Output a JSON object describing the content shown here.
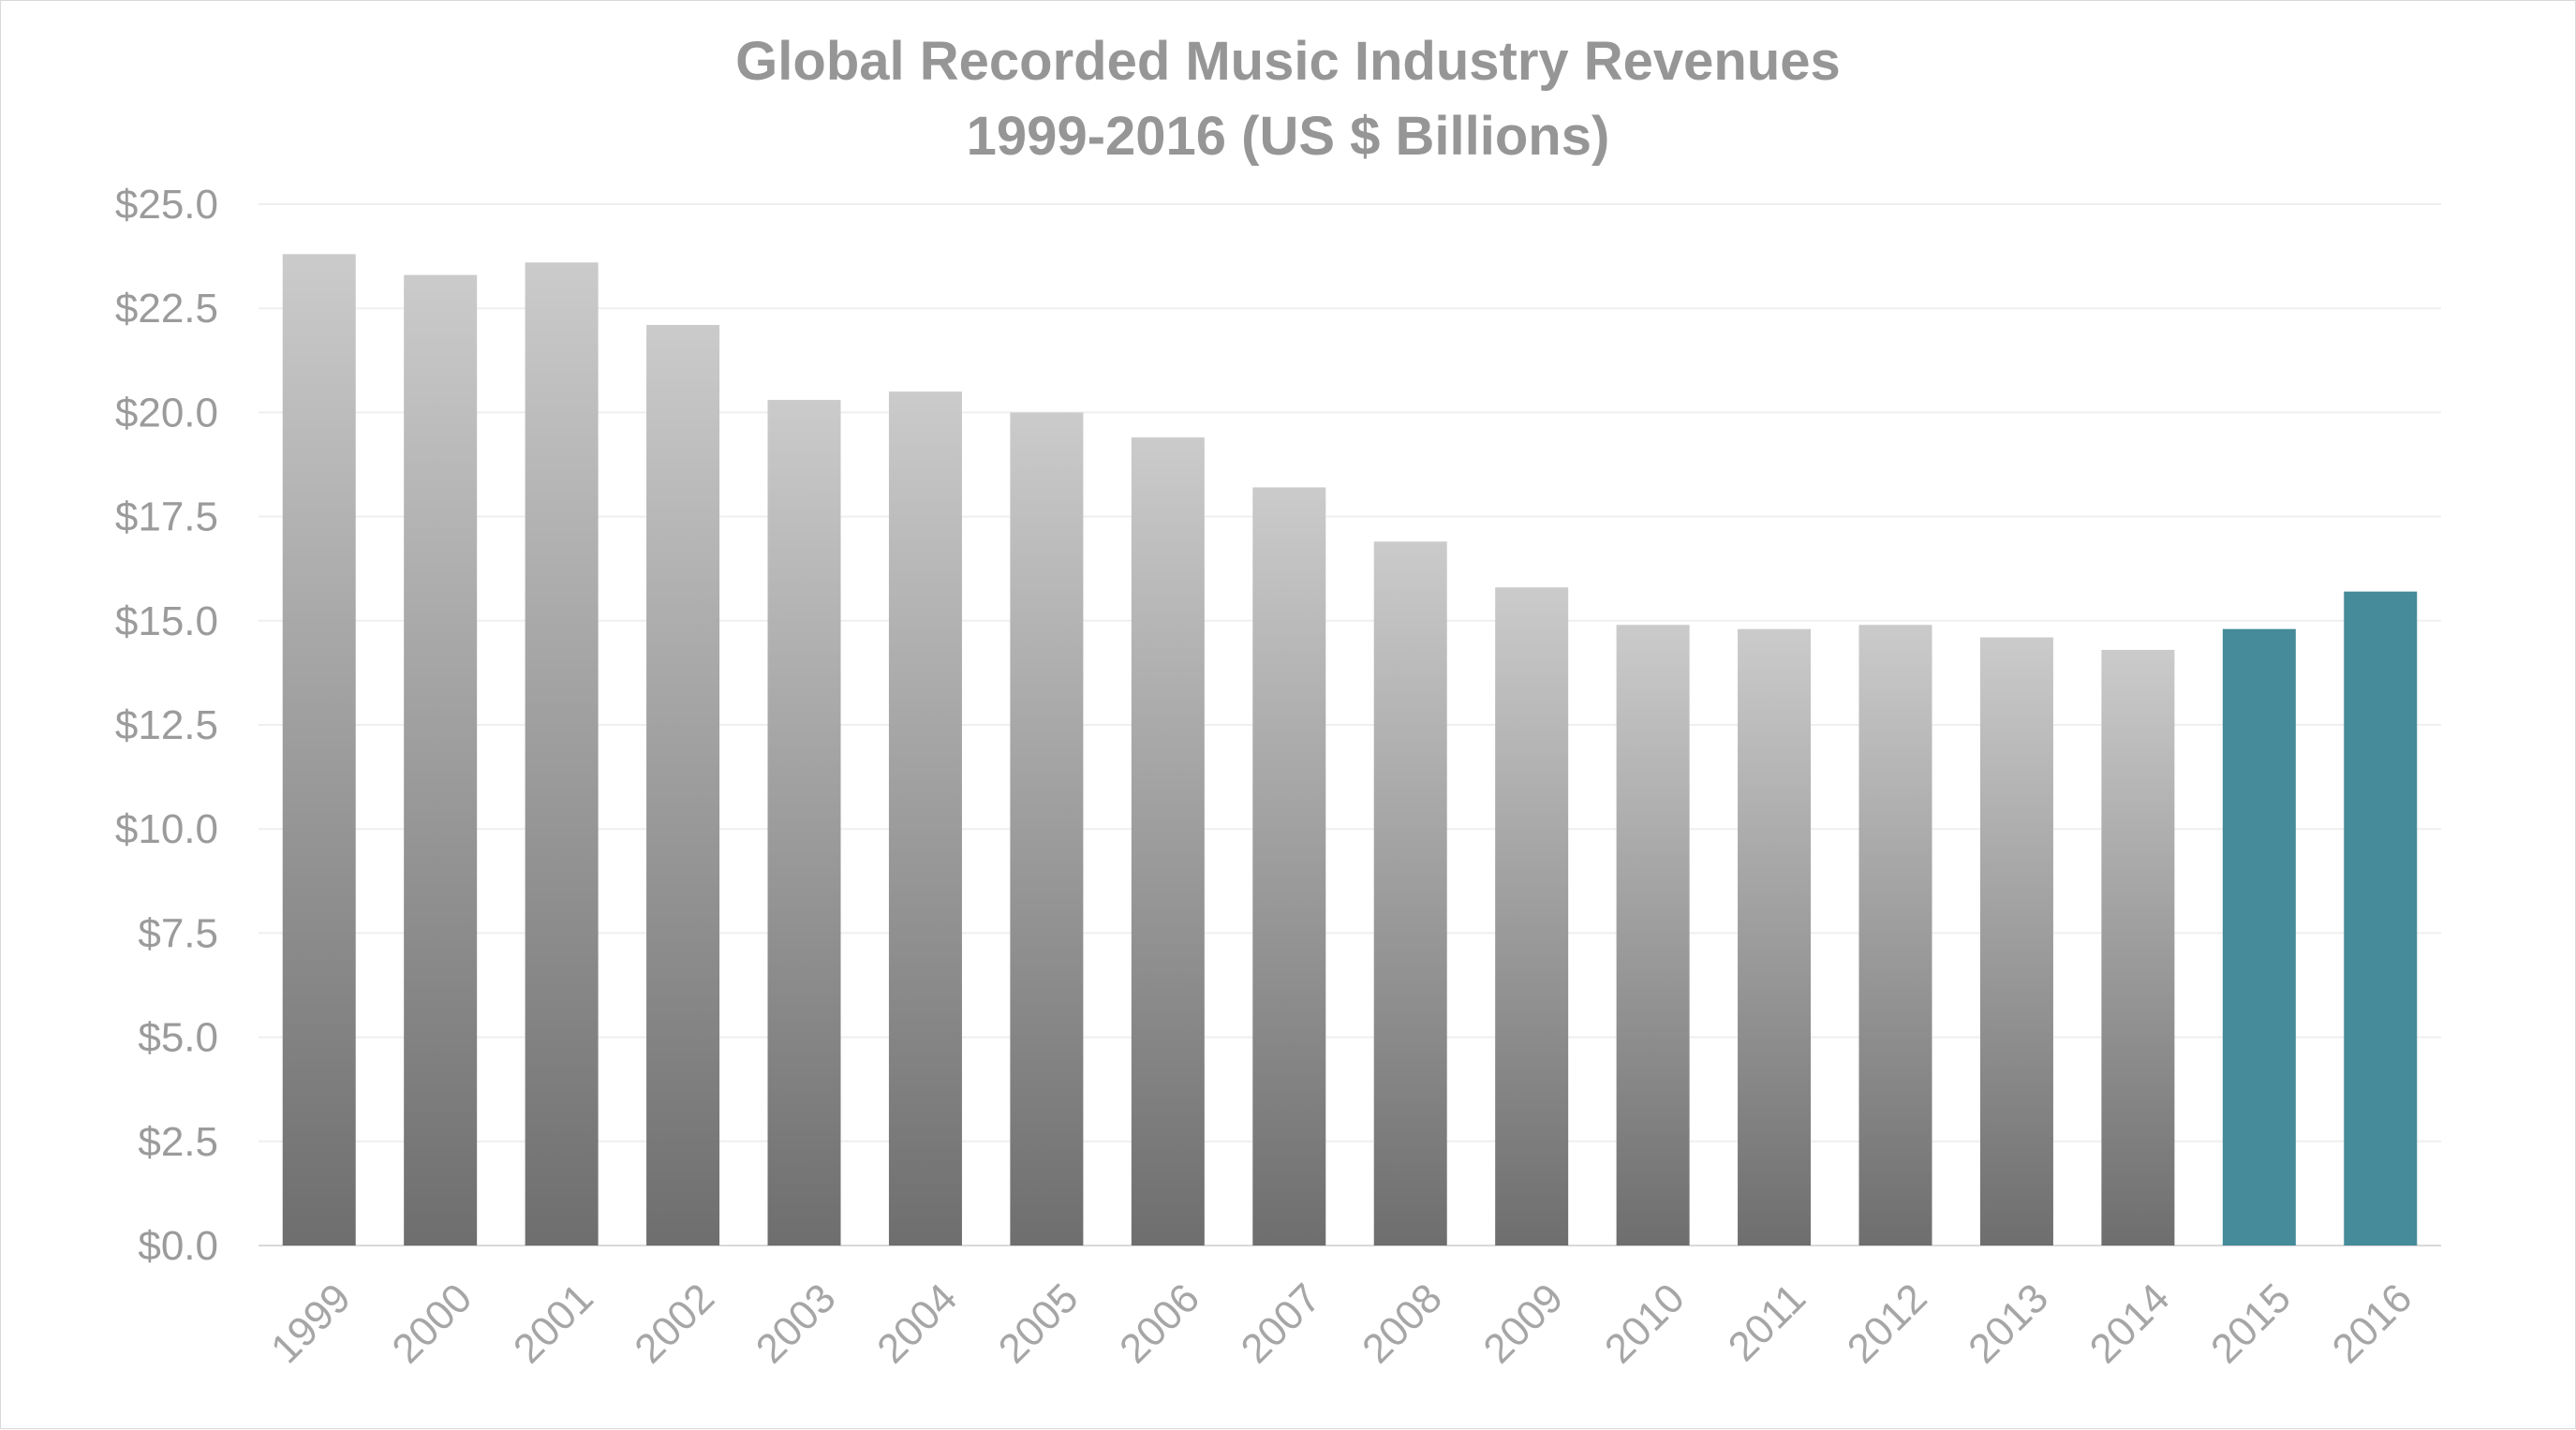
{
  "chart_data": {
    "type": "bar",
    "title": "Global Recorded Music Industry Revenues",
    "subtitle": "1999-2016 (US $ Billions)",
    "xlabel": "",
    "ylabel": "",
    "categories": [
      "1999",
      "2000",
      "2001",
      "2002",
      "2003",
      "2004",
      "2005",
      "2006",
      "2007",
      "2008",
      "2009",
      "2010",
      "2011",
      "2012",
      "2013",
      "2014",
      "2015",
      "2016"
    ],
    "values": [
      23.8,
      23.3,
      23.6,
      22.1,
      20.3,
      20.5,
      20.0,
      19.4,
      18.2,
      16.9,
      15.8,
      14.9,
      14.8,
      14.9,
      14.6,
      14.3,
      14.8,
      15.7
    ],
    "highlight_categories": [
      "2015",
      "2016"
    ],
    "ylim": [
      0,
      25
    ],
    "y_ticks": [
      0,
      2.5,
      5,
      7.5,
      10,
      12.5,
      15,
      17.5,
      20,
      22.5,
      25
    ],
    "y_tick_labels": [
      "$0.0",
      "$2.5",
      "$5.0",
      "$7.5",
      "$10.0",
      "$12.5",
      "$15.0",
      "$17.5",
      "$20.0",
      "$22.5",
      "$25.0"
    ],
    "grid": true,
    "legend": "none",
    "colors": {
      "bar_gradient_top": "#cbcbcb",
      "bar_gradient_bottom": "#6e6e6e",
      "highlight": "#458b99",
      "title": "#969696",
      "tick_labels": "#9b9b9b",
      "gridline": "#efefef"
    }
  }
}
